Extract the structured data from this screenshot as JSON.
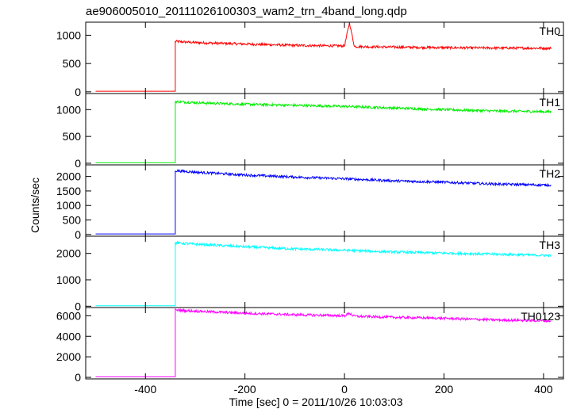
{
  "title": "ae906005010_20111026100303_wam2_trn_4band_long.qdp",
  "xlabel": "Time [sec] 0 = 2011/10/26 10:03:03",
  "ylabel": "Counts/sec",
  "chart_data": {
    "type": "line",
    "title": "ae906005010_20111026100303_wam2_trn_4band_long.qdp",
    "xlabel": "Time [sec] 0 = 2011/10/26 10:03:03",
    "ylabel": "Counts/sec",
    "xlim": [
      -520,
      440
    ],
    "x_ticks": [
      "-400",
      "-200",
      "0",
      "200",
      "400"
    ],
    "x_tick_values": [
      -400,
      -200,
      0,
      200,
      400
    ],
    "burst_onset_time": -340,
    "series_start": -500,
    "series_end": 415,
    "panels": [
      {
        "name": "TH0",
        "color": "#ff0000",
        "ylim": [
          -30,
          1230
        ],
        "y_ticks": [
          "0",
          "500",
          "1000"
        ],
        "y_tick_values": [
          0,
          500,
          1000
        ],
        "pre_burst_level": 10,
        "points": [
          [
            -340,
            890
          ],
          [
            -300,
            870
          ],
          [
            -200,
            845
          ],
          [
            -100,
            820
          ],
          [
            0,
            810
          ],
          [
            10,
            1220
          ],
          [
            20,
            800
          ],
          [
            100,
            790
          ],
          [
            200,
            780
          ],
          [
            300,
            775
          ],
          [
            415,
            770
          ]
        ]
      },
      {
        "name": "TH1",
        "color": "#00ee00",
        "ylim": [
          -30,
          1300
        ],
        "y_ticks": [
          "0",
          "500",
          "1000"
        ],
        "y_tick_values": [
          0,
          500,
          1000
        ],
        "pre_burst_level": 10,
        "points": [
          [
            -340,
            1150
          ],
          [
            -300,
            1130
          ],
          [
            -200,
            1100
          ],
          [
            -100,
            1080
          ],
          [
            0,
            1060
          ],
          [
            100,
            1030
          ],
          [
            200,
            1000
          ],
          [
            300,
            975
          ],
          [
            415,
            960
          ]
        ]
      },
      {
        "name": "TH2",
        "color": "#0000ff",
        "ylim": [
          -60,
          2400
        ],
        "y_ticks": [
          "0",
          "500",
          "1000",
          "1500",
          "2000"
        ],
        "y_tick_values": [
          0,
          500,
          1000,
          1500,
          2000
        ],
        "pre_burst_level": 20,
        "points": [
          [
            -340,
            2200
          ],
          [
            -300,
            2150
          ],
          [
            -200,
            2050
          ],
          [
            -100,
            1980
          ],
          [
            0,
            1920
          ],
          [
            100,
            1850
          ],
          [
            200,
            1800
          ],
          [
            300,
            1740
          ],
          [
            415,
            1700
          ]
        ]
      },
      {
        "name": "TH3",
        "color": "#00ffff",
        "ylim": [
          -50,
          2650
        ],
        "y_ticks": [
          "0",
          "1000",
          "2000"
        ],
        "y_tick_values": [
          0,
          1000,
          2000
        ],
        "pre_burst_level": 20,
        "points": [
          [
            -340,
            2400
          ],
          [
            -300,
            2350
          ],
          [
            -200,
            2250
          ],
          [
            -100,
            2170
          ],
          [
            0,
            2120
          ],
          [
            100,
            2050
          ],
          [
            200,
            2010
          ],
          [
            300,
            1970
          ],
          [
            415,
            1920
          ]
        ]
      },
      {
        "name": "TH0123",
        "color": "#ff00ff",
        "ylim": [
          -150,
          6800
        ],
        "y_ticks": [
          "0",
          "2000",
          "4000",
          "6000"
        ],
        "y_tick_values": [
          0,
          2000,
          4000,
          6000
        ],
        "pre_burst_level": 50,
        "points": [
          [
            -340,
            6550
          ],
          [
            -300,
            6450
          ],
          [
            -200,
            6250
          ],
          [
            -100,
            6100
          ],
          [
            0,
            6000
          ],
          [
            10,
            6250
          ],
          [
            20,
            5950
          ],
          [
            100,
            5850
          ],
          [
            200,
            5750
          ],
          [
            300,
            5600
          ],
          [
            415,
            5500
          ]
        ]
      }
    ]
  }
}
